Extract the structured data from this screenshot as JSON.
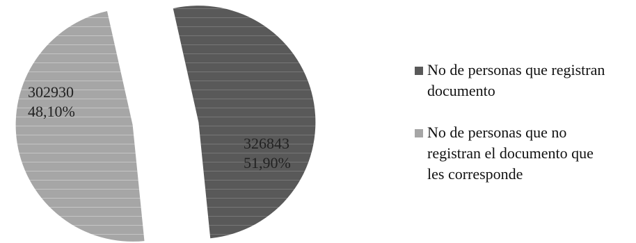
{
  "chart_data": {
    "type": "pie",
    "exploded": true,
    "slices": [
      {
        "name": "No de personas que registran documento",
        "value": 326843,
        "value_label": "326843",
        "percent_label": "51,90%",
        "color": "#595959",
        "legend_lines": [
          "No de personas que registran",
          "documento"
        ]
      },
      {
        "name": "No de personas que no registran el documento que les corresponde",
        "value": 302930,
        "value_label": "302930",
        "percent_label": "48,10%",
        "color": "#a6a6a6",
        "legend_lines": [
          "No de personas que no",
          "registran el documento que",
          "les corresponde"
        ]
      }
    ],
    "legend_position": "right",
    "slice_texture": "horizontal-stripes"
  }
}
